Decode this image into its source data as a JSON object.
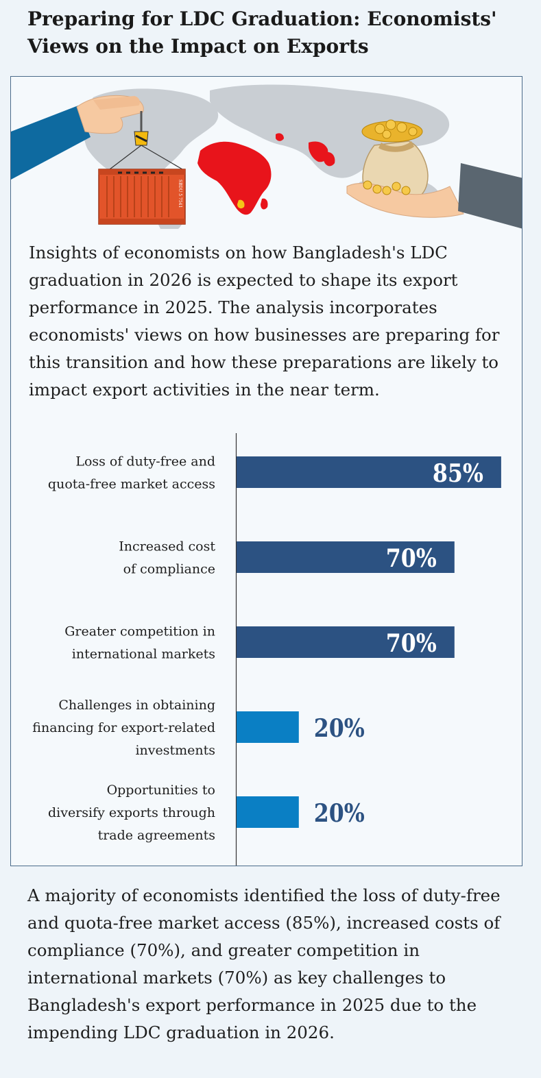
{
  "header": {
    "title": "Preparing for LDC Graduation: Economists' Views on the Impact on Exports"
  },
  "intro": {
    "text": "Insights of economists on how Bangladesh's LDC graduation in 2026 is expected to shape its export performance in 2025. The analysis incorporates economists' views on how businesses are preparing for this transition and how these preparations are likely to impact export activities in the near term."
  },
  "illustration": {
    "container_label": "SBDU 5 7541",
    "icons": [
      "hand-with-crane-hook-icon",
      "shipping-container-icon",
      "world-map-icon",
      "money-bag-icon",
      "hand-receiving-coins-icon"
    ]
  },
  "chart_data": {
    "type": "bar",
    "orientation": "horizontal",
    "title": "",
    "xlabel": "",
    "ylabel": "",
    "xlim": [
      0,
      100
    ],
    "unit": "%",
    "categories": [
      [
        "Loss of duty-free and",
        "quota-free market access"
      ],
      [
        "Increased cost",
        "of compliance"
      ],
      [
        "Greater competition in",
        "international markets"
      ],
      [
        "Challenges in obtaining",
        "financing for export-related",
        "investments"
      ],
      [
        "Opportunities to",
        "diversify exports through",
        "trade agreements"
      ]
    ],
    "values": [
      85,
      70,
      70,
      20,
      20
    ],
    "colors": [
      "#2c5282",
      "#2c5282",
      "#2c5282",
      "#0a7fc4",
      "#0a7fc4"
    ],
    "value_labels": [
      "85%",
      "70%",
      "70%",
      "20%",
      "20%"
    ],
    "value_label_colors": {
      "inside": "#ffffff",
      "outside": "#2c5282"
    },
    "grid": false,
    "legend": "none"
  },
  "summary": {
    "text": "A majority of economists identified the loss of duty-free and quota-free market access (85%), increased costs of compliance (70%), and greater competition in international markets (70%) as key challenges to Bangladesh's export performance in 2025 due to the impending LDC graduation in 2026."
  }
}
